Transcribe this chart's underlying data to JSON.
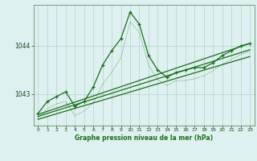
{
  "background_color": "#dff0f0",
  "grid_color": "#aacaca",
  "line_color": "#1a6e1a",
  "xlabel": "Graphe pression niveau de la mer (hPa)",
  "xlim": [
    -0.5,
    23.5
  ],
  "ylim": [
    1042.35,
    1044.85
  ],
  "yticks": [
    1043,
    1044
  ],
  "xticks": [
    0,
    1,
    2,
    3,
    4,
    5,
    6,
    7,
    8,
    9,
    10,
    11,
    12,
    13,
    14,
    15,
    16,
    17,
    18,
    19,
    20,
    21,
    22,
    23
  ],
  "series1_x": [
    0,
    1,
    2,
    3,
    4,
    5,
    6,
    7,
    8,
    9,
    10,
    11,
    12,
    13,
    14,
    15,
    16,
    17,
    18,
    19,
    20,
    21,
    22,
    23
  ],
  "series1_y": [
    1042.6,
    1042.85,
    1042.95,
    1043.05,
    1042.75,
    1042.85,
    1043.15,
    1043.6,
    1043.9,
    1044.15,
    1044.7,
    1044.45,
    1043.8,
    1043.5,
    1043.35,
    1043.45,
    1043.5,
    1043.55,
    1043.55,
    1043.65,
    1043.8,
    1043.9,
    1044.0,
    1044.05
  ],
  "series2_x": [
    0,
    1,
    2,
    3,
    4,
    5,
    6,
    7,
    8,
    9,
    10,
    11,
    12,
    13,
    14,
    15,
    16,
    17,
    18,
    19,
    20,
    21,
    22,
    23
  ],
  "series2_y": [
    1042.5,
    1042.7,
    1042.8,
    1042.85,
    1042.55,
    1042.65,
    1042.82,
    1043.2,
    1043.45,
    1043.75,
    1044.5,
    1044.28,
    1043.6,
    1043.3,
    1043.18,
    1043.28,
    1043.28,
    1043.32,
    1043.38,
    1043.48,
    1043.62,
    1043.72,
    1043.82,
    1043.88
  ],
  "trend1_x": [
    0,
    23
  ],
  "trend1_y": [
    1042.58,
    1044.05
  ],
  "trend2_x": [
    0,
    23
  ],
  "trend2_y": [
    1042.54,
    1043.92
  ],
  "trend3_x": [
    0,
    23
  ],
  "trend3_y": [
    1042.48,
    1043.78
  ]
}
